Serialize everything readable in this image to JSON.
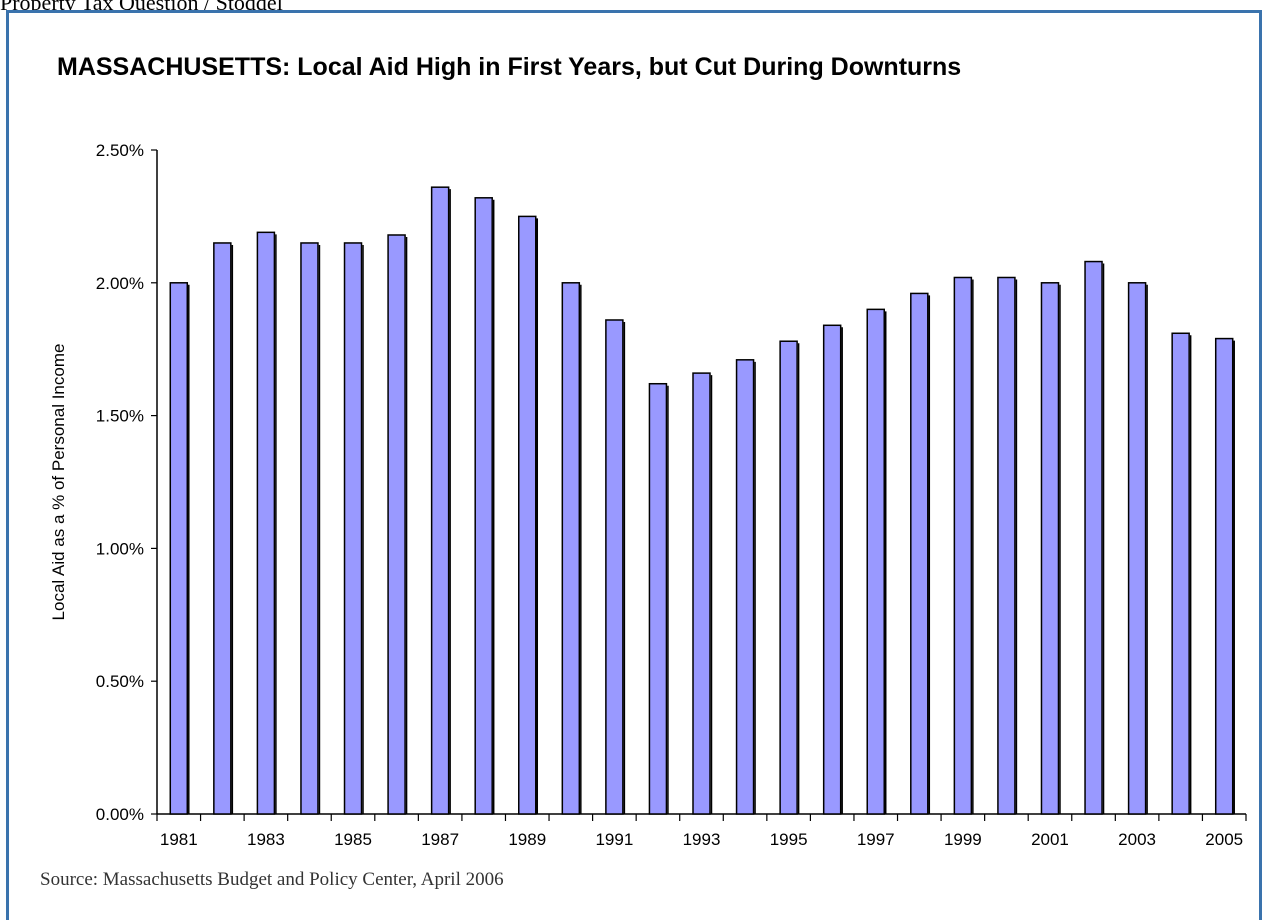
{
  "document": {
    "header_text": "Property Tax Question / Stoddel",
    "source_note": "Source:  Massachusetts Budget and Policy Center, April 2006"
  },
  "chart_data": {
    "type": "bar",
    "title": "MASSACHUSETTS: Local Aid High in First Years, but Cut During Downturns",
    "xlabel": "",
    "ylabel": "Local Aid as a % of Personal Income",
    "ylim": [
      0,
      0.025
    ],
    "yticks": [
      0,
      0.005,
      0.01,
      0.015,
      0.02,
      0.025
    ],
    "ytick_labels": [
      "0.00%",
      "0.50%",
      "1.00%",
      "1.50%",
      "2.00%",
      "2.50%"
    ],
    "categories": [
      "1981",
      "1982",
      "1983",
      "1984",
      "1985",
      "1986",
      "1987",
      "1988",
      "1989",
      "1990",
      "1991",
      "1992",
      "1993",
      "1994",
      "1995",
      "1996",
      "1997",
      "1998",
      "1999",
      "2000",
      "2001",
      "2002",
      "2003",
      "2004",
      "2005"
    ],
    "xtick_labels": [
      "1981",
      "",
      "1983",
      "",
      "1985",
      "",
      "1987",
      "",
      "1989",
      "",
      "1991",
      "",
      "1993",
      "",
      "1995",
      "",
      "1997",
      "",
      "1999",
      "",
      "2001",
      "",
      "2003",
      "",
      "2005"
    ],
    "values": [
      0.02,
      0.0215,
      0.0219,
      0.0215,
      0.0215,
      0.0218,
      0.0236,
      0.0232,
      0.0225,
      0.02,
      0.0186,
      0.0162,
      0.0166,
      0.0171,
      0.0178,
      0.0184,
      0.019,
      0.0196,
      0.0202,
      0.0202,
      0.02,
      0.0208,
      0.02,
      0.0181,
      0.0179
    ],
    "bar_color": "#9999ff",
    "grid": false,
    "legend": "none"
  }
}
